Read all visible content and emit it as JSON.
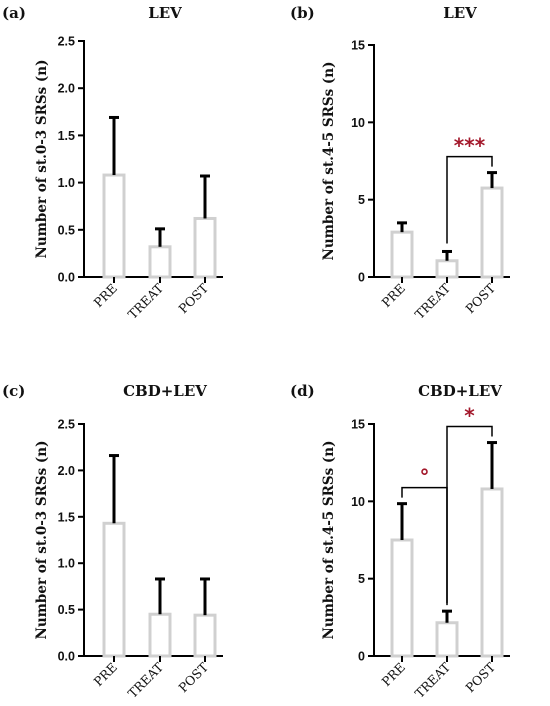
{
  "colors": {
    "bar": "#d0d0d0",
    "error": "#000000",
    "axis": "#000000",
    "significance": "#a3182b"
  },
  "chart_data": [
    {
      "type": "bar",
      "panel": "(a)",
      "title": "LEV",
      "ylabel": "Number of st.0-3 SRSs (n)",
      "categories": [
        "PRE",
        "TREAT",
        "POST"
      ],
      "values": [
        1.08,
        0.32,
        0.62
      ],
      "errors": [
        0.61,
        0.19,
        0.45
      ],
      "ylim": [
        0,
        2.5
      ],
      "yticks": [
        "0.0",
        "0.5",
        "1.0",
        "1.5",
        "2.0",
        "2.5"
      ],
      "significance": []
    },
    {
      "type": "bar",
      "panel": "(b)",
      "title": "LEV",
      "ylabel": "Number of st.4-5 SRSs (n)",
      "categories": [
        "PRE",
        "TREAT",
        "POST"
      ],
      "values": [
        2.9,
        1.05,
        5.75
      ],
      "errors": [
        0.6,
        0.6,
        1.0
      ],
      "ylim": [
        0,
        15
      ],
      "yticks": [
        "0",
        "5",
        "10",
        "15"
      ],
      "significance": [
        {
          "from": 1,
          "to": 2,
          "label": "***"
        }
      ]
    },
    {
      "type": "bar",
      "panel": "(c)",
      "title": "CBD+LEV",
      "ylabel": "Number of st.0-3 SRSs (n)",
      "categories": [
        "PRE",
        "TREAT",
        "POST"
      ],
      "values": [
        1.43,
        0.45,
        0.44
      ],
      "errors": [
        0.73,
        0.38,
        0.39
      ],
      "ylim": [
        0,
        2.5
      ],
      "yticks": [
        "0.0",
        "0.5",
        "1.0",
        "1.5",
        "2.0",
        "2.5"
      ],
      "significance": []
    },
    {
      "type": "bar",
      "panel": "(d)",
      "title": "CBD+LEV",
      "ylabel": "Number of st.4-5 SRSs (n)",
      "categories": [
        "PRE",
        "TREAT",
        "POST"
      ],
      "values": [
        7.5,
        2.15,
        10.8
      ],
      "errors": [
        2.35,
        0.75,
        3.0
      ],
      "ylim": [
        0,
        15
      ],
      "yticks": [
        "0",
        "5",
        "10",
        "15"
      ],
      "significance": [
        {
          "from": 0,
          "to": 1,
          "label": "°"
        },
        {
          "from": 1,
          "to": 2,
          "label": "*"
        }
      ]
    }
  ]
}
